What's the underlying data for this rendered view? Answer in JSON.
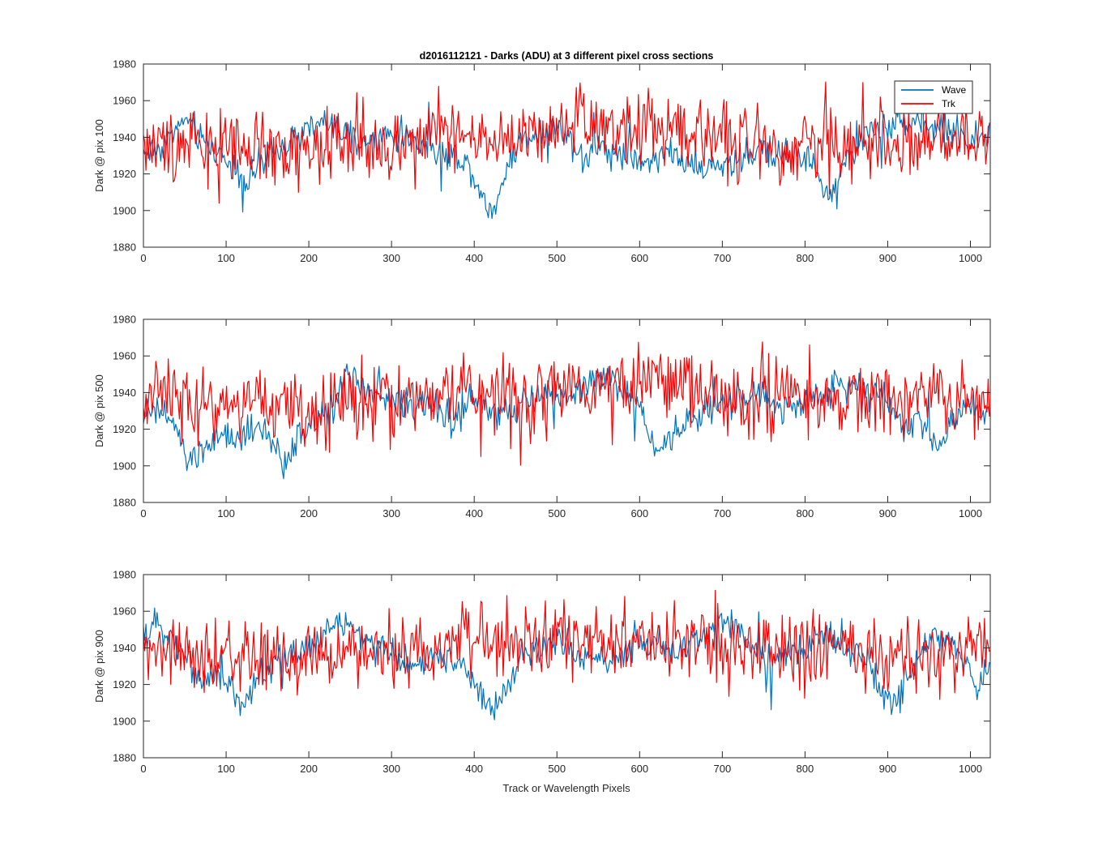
{
  "figure_title": "d2016112121 - Darks (ADU) at 3 different pixel cross sections",
  "xlabel": "Track or Wavelength Pixels",
  "legend": {
    "placement": "top-right",
    "entries": [
      {
        "label": "Wave",
        "color": "#0072BD"
      },
      {
        "label": "Trk",
        "color": "#FF0000"
      }
    ]
  },
  "chart_data": [
    {
      "type": "line",
      "ylabel": "Dark @ pix 100",
      "xlim": [
        0,
        1024
      ],
      "ylim": [
        1880,
        1980
      ],
      "xticks": [
        0,
        100,
        200,
        300,
        400,
        500,
        600,
        700,
        800,
        900,
        1000
      ],
      "yticks": [
        1880,
        1900,
        1920,
        1940,
        1960,
        1980
      ],
      "series": [
        {
          "name": "Wave",
          "color": "#0072BD",
          "x": [
            0,
            20,
            40,
            55,
            70,
            90,
            110,
            125,
            140,
            160,
            180,
            200,
            220,
            240,
            260,
            280,
            300,
            320,
            340,
            360,
            380,
            395,
            405,
            415,
            425,
            435,
            450,
            470,
            490,
            510,
            530,
            550,
            570,
            590,
            610,
            630,
            650,
            670,
            690,
            710,
            730,
            750,
            770,
            790,
            810,
            820,
            830,
            840,
            860,
            880,
            900,
            920,
            940,
            960,
            980,
            1000,
            1024
          ],
          "y": [
            1932,
            1934,
            1945,
            1950,
            1938,
            1932,
            1924,
            1916,
            1925,
            1932,
            1938,
            1944,
            1948,
            1942,
            1936,
            1938,
            1942,
            1940,
            1936,
            1932,
            1930,
            1924,
            1912,
            1903,
            1900,
            1918,
            1935,
            1942,
            1946,
            1944,
            1928,
            1935,
            1932,
            1930,
            1926,
            1934,
            1928,
            1920,
            1926,
            1924,
            1930,
            1934,
            1930,
            1932,
            1926,
            1914,
            1903,
            1920,
            1934,
            1944,
            1946,
            1950,
            1948,
            1945,
            1944,
            1938,
            1940
          ]
        },
        {
          "name": "Trk",
          "color": "#FF0000",
          "x": [
            0,
            30,
            60,
            90,
            120,
            150,
            180,
            210,
            240,
            270,
            300,
            330,
            360,
            390,
            420,
            450,
            480,
            510,
            540,
            570,
            600,
            630,
            660,
            690,
            720,
            750,
            780,
            810,
            840,
            870,
            900,
            930,
            960,
            990,
            1024
          ],
          "y": [
            1937,
            1936,
            1938,
            1935,
            1932,
            1931,
            1934,
            1936,
            1938,
            1936,
            1936,
            1938,
            1942,
            1940,
            1938,
            1936,
            1940,
            1942,
            1945,
            1944,
            1946,
            1944,
            1942,
            1940,
            1938,
            1936,
            1934,
            1936,
            1936,
            1938,
            1938,
            1937,
            1937,
            1936,
            1938
          ]
        }
      ]
    },
    {
      "type": "line",
      "ylabel": "Dark @ pix 500",
      "xlim": [
        0,
        1024
      ],
      "ylim": [
        1880,
        1980
      ],
      "xticks": [
        0,
        100,
        200,
        300,
        400,
        500,
        600,
        700,
        800,
        900,
        1000
      ],
      "yticks": [
        1880,
        1900,
        1920,
        1940,
        1960,
        1980
      ],
      "series": [
        {
          "name": "Wave",
          "color": "#0072BD",
          "x": [
            0,
            20,
            40,
            50,
            60,
            80,
            100,
            120,
            140,
            160,
            170,
            190,
            210,
            230,
            245,
            260,
            280,
            300,
            320,
            340,
            360,
            375,
            390,
            410,
            430,
            450,
            470,
            490,
            510,
            530,
            550,
            570,
            590,
            610,
            620,
            640,
            660,
            680,
            700,
            720,
            740,
            760,
            780,
            800,
            820,
            840,
            860,
            880,
            900,
            920,
            940,
            960,
            980,
            1000,
            1024
          ],
          "y": [
            1928,
            1930,
            1920,
            1905,
            1903,
            1912,
            1915,
            1914,
            1920,
            1910,
            1900,
            1918,
            1925,
            1932,
            1955,
            1946,
            1938,
            1936,
            1934,
            1932,
            1930,
            1924,
            1932,
            1935,
            1925,
            1932,
            1936,
            1938,
            1938,
            1942,
            1950,
            1946,
            1938,
            1924,
            1906,
            1916,
            1924,
            1930,
            1934,
            1936,
            1938,
            1934,
            1932,
            1934,
            1940,
            1944,
            1946,
            1940,
            1936,
            1920,
            1928,
            1910,
            1926,
            1936,
            1928
          ]
        },
        {
          "name": "Trk",
          "color": "#FF0000",
          "x": [
            0,
            30,
            60,
            90,
            120,
            150,
            180,
            210,
            240,
            270,
            300,
            330,
            360,
            390,
            420,
            450,
            480,
            510,
            540,
            570,
            600,
            630,
            660,
            690,
            720,
            750,
            780,
            810,
            840,
            870,
            900,
            930,
            960,
            990,
            1024
          ],
          "y": [
            1938,
            1940,
            1936,
            1934,
            1934,
            1934,
            1932,
            1930,
            1933,
            1934,
            1936,
            1938,
            1940,
            1941,
            1940,
            1938,
            1940,
            1942,
            1943,
            1944,
            1946,
            1944,
            1942,
            1940,
            1938,
            1936,
            1935,
            1934,
            1934,
            1936,
            1937,
            1936,
            1937,
            1938,
            1938
          ]
        }
      ]
    },
    {
      "type": "line",
      "ylabel": "Dark @ pix 900",
      "xlim": [
        0,
        1024
      ],
      "ylim": [
        1880,
        1980
      ],
      "xticks": [
        0,
        100,
        200,
        300,
        400,
        500,
        600,
        700,
        800,
        900,
        1000
      ],
      "yticks": [
        1880,
        1900,
        1920,
        1940,
        1960,
        1980
      ],
      "series": [
        {
          "name": "Wave",
          "color": "#0072BD",
          "x": [
            0,
            15,
            30,
            50,
            70,
            90,
            110,
            120,
            140,
            160,
            180,
            200,
            220,
            240,
            260,
            280,
            300,
            320,
            340,
            360,
            380,
            395,
            410,
            420,
            430,
            445,
            460,
            480,
            500,
            520,
            540,
            560,
            580,
            600,
            620,
            640,
            660,
            680,
            700,
            720,
            740,
            760,
            780,
            800,
            820,
            840,
            860,
            880,
            900,
            910,
            920,
            940,
            960,
            980,
            1000,
            1010,
            1024
          ],
          "y": [
            1945,
            1952,
            1950,
            1936,
            1922,
            1926,
            1918,
            1906,
            1925,
            1932,
            1936,
            1942,
            1948,
            1954,
            1948,
            1940,
            1936,
            1932,
            1930,
            1936,
            1934,
            1926,
            1912,
            1904,
            1910,
            1924,
            1936,
            1940,
            1944,
            1938,
            1936,
            1932,
            1936,
            1940,
            1945,
            1940,
            1942,
            1946,
            1954,
            1952,
            1940,
            1932,
            1936,
            1940,
            1948,
            1944,
            1936,
            1928,
            1912,
            1908,
            1920,
            1936,
            1950,
            1940,
            1926,
            1918,
            1932
          ]
        },
        {
          "name": "Trk",
          "color": "#FF0000",
          "x": [
            0,
            30,
            60,
            90,
            120,
            150,
            180,
            210,
            240,
            270,
            300,
            330,
            360,
            390,
            420,
            450,
            480,
            510,
            540,
            570,
            600,
            630,
            660,
            690,
            720,
            750,
            780,
            810,
            840,
            870,
            900,
            930,
            960,
            990,
            1024
          ],
          "y": [
            1938,
            1940,
            1936,
            1934,
            1934,
            1935,
            1934,
            1936,
            1938,
            1940,
            1941,
            1940,
            1940,
            1942,
            1942,
            1942,
            1943,
            1944,
            1944,
            1943,
            1942,
            1942,
            1943,
            1942,
            1940,
            1938,
            1937,
            1938,
            1938,
            1938,
            1936,
            1936,
            1937,
            1938,
            1940
          ]
        }
      ]
    }
  ]
}
